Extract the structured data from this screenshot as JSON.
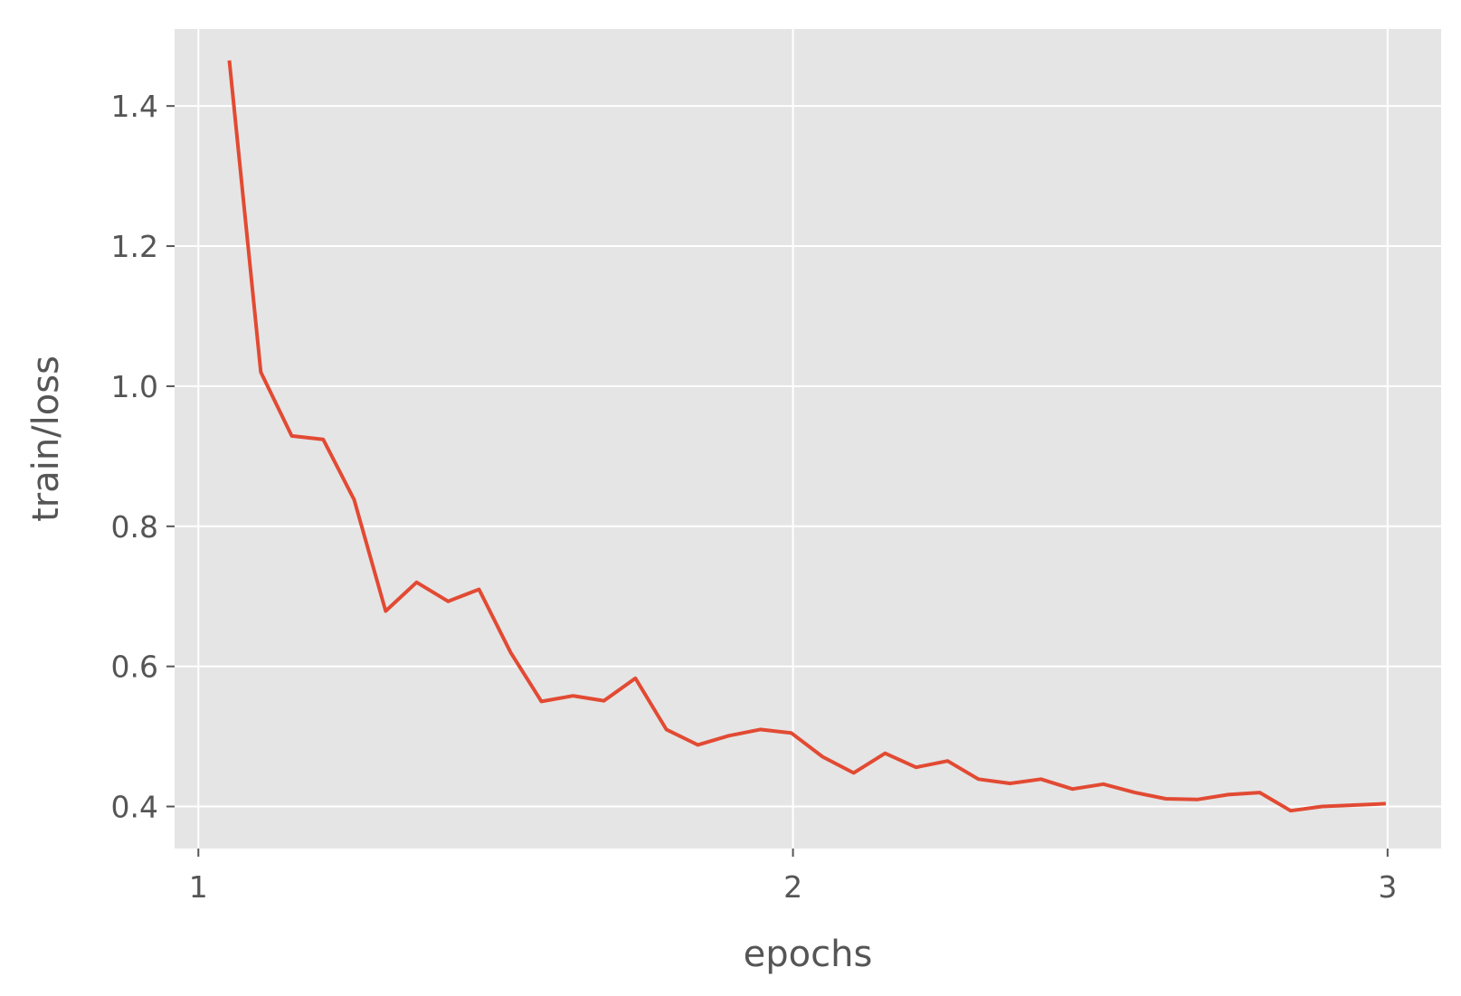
{
  "chart_data": {
    "type": "line",
    "xlabel": "epochs",
    "ylabel": "train/loss",
    "xlim": [
      0.96,
      3.09
    ],
    "ylim": [
      0.34,
      1.51
    ],
    "xticks": [
      1,
      2,
      3
    ],
    "xtick_labels": [
      "1",
      "2",
      "3"
    ],
    "yticks": [
      0.4,
      0.6,
      0.8,
      1.0,
      1.2,
      1.4
    ],
    "ytick_labels": [
      "0.4",
      "0.6",
      "0.8",
      "1.0",
      "1.2",
      "1.4"
    ],
    "grid": true,
    "legend": "none",
    "series": [
      {
        "color": "#E24A33",
        "x": [
          1.052,
          1.105,
          1.157,
          1.21,
          1.262,
          1.315,
          1.367,
          1.42,
          1.472,
          1.525,
          1.577,
          1.63,
          1.682,
          1.735,
          1.787,
          1.84,
          1.892,
          1.945,
          1.997,
          2.05,
          2.102,
          2.155,
          2.207,
          2.26,
          2.312,
          2.365,
          2.417,
          2.47,
          2.522,
          2.575,
          2.627,
          2.68,
          2.732,
          2.785,
          2.837,
          2.89,
          2.942,
          2.997
        ],
        "y": [
          1.465,
          1.02,
          0.929,
          0.924,
          0.838,
          0.679,
          0.72,
          0.693,
          0.71,
          0.62,
          0.55,
          0.558,
          0.551,
          0.583,
          0.51,
          0.488,
          0.501,
          0.51,
          0.505,
          0.471,
          0.448,
          0.476,
          0.456,
          0.465,
          0.439,
          0.433,
          0.439,
          0.425,
          0.432,
          0.42,
          0.411,
          0.41,
          0.417,
          0.42,
          0.394,
          0.4,
          0.402,
          0.404
        ]
      }
    ]
  }
}
